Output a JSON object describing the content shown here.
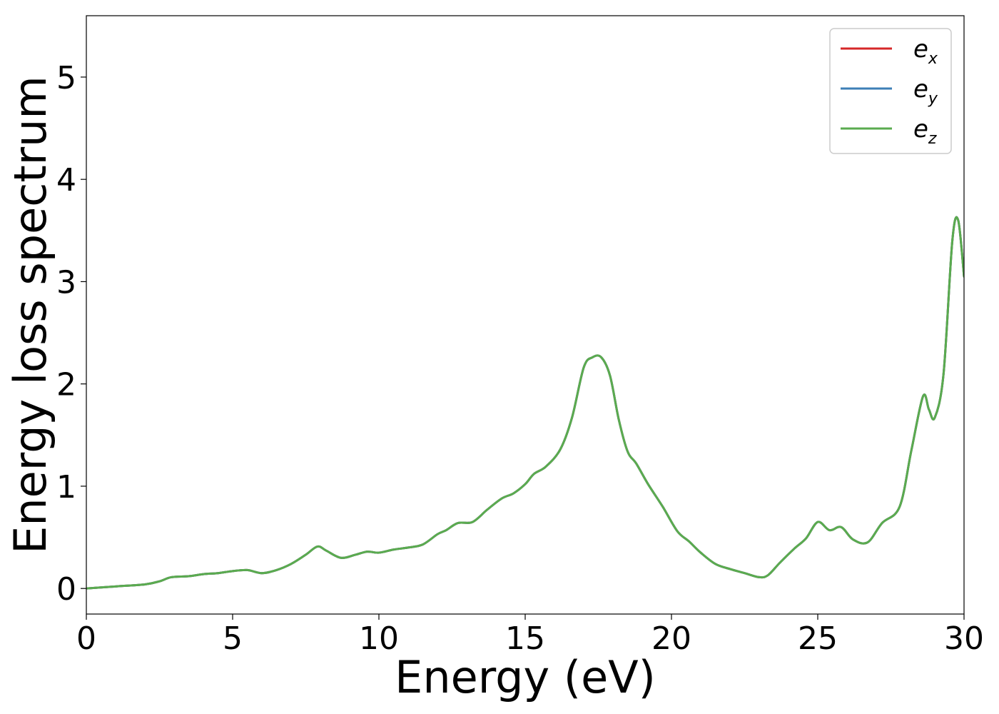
{
  "chart_data": {
    "type": "line",
    "title": "",
    "xlabel": "Energy (eV)",
    "ylabel": "Energy loss spectrum",
    "xlim": [
      0,
      30
    ],
    "ylim": [
      -0.25,
      5.6
    ],
    "xticks": [
      0,
      5,
      10,
      15,
      20,
      25,
      30
    ],
    "yticks": [
      0,
      1,
      2,
      3,
      4,
      5
    ],
    "grid": false,
    "legend_position": "top-right",
    "series": [
      {
        "name": "e",
        "subscript": "x",
        "color": "#d62728",
        "x": [
          0,
          1,
          2,
          2.5,
          2.9,
          3.5,
          4,
          4.5,
          5,
          5.5,
          6,
          6.5,
          7,
          7.5,
          7.9,
          8.2,
          8.7,
          9.2,
          9.6,
          10,
          10.5,
          11,
          11.5,
          12,
          12.3,
          12.7,
          13.2,
          13.7,
          14.2,
          14.6,
          15,
          15.3,
          15.7,
          16.2,
          16.6,
          17,
          17.3,
          17.6,
          17.9,
          18.2,
          18.5,
          18.8,
          19.2,
          19.7,
          20.2,
          20.6,
          21,
          21.5,
          22,
          22.5,
          23,
          23.3,
          23.7,
          24.2,
          24.6,
          25,
          25.4,
          25.8,
          26.2,
          26.7,
          27.2,
          27.8,
          28.2,
          28.6,
          28.8,
          29,
          29.3,
          29.6,
          29.8,
          30
        ],
        "values": [
          0.0,
          0.02,
          0.04,
          0.07,
          0.11,
          0.12,
          0.14,
          0.15,
          0.17,
          0.18,
          0.15,
          0.18,
          0.24,
          0.33,
          0.41,
          0.37,
          0.3,
          0.33,
          0.36,
          0.35,
          0.38,
          0.4,
          0.43,
          0.53,
          0.57,
          0.64,
          0.65,
          0.77,
          0.88,
          0.93,
          1.02,
          1.12,
          1.19,
          1.36,
          1.67,
          2.16,
          2.26,
          2.26,
          2.08,
          1.65,
          1.34,
          1.22,
          1.02,
          0.8,
          0.56,
          0.46,
          0.35,
          0.24,
          0.19,
          0.15,
          0.11,
          0.13,
          0.25,
          0.39,
          0.49,
          0.65,
          0.57,
          0.6,
          0.48,
          0.45,
          0.64,
          0.8,
          1.35,
          1.88,
          1.75,
          1.67,
          2.1,
          3.4,
          3.6,
          3.05
        ]
      },
      {
        "name": "e",
        "subscript": "y",
        "color": "#3d7fb6",
        "x": [
          0,
          1,
          2,
          2.5,
          2.9,
          3.5,
          4,
          4.5,
          5,
          5.5,
          6,
          6.5,
          7,
          7.5,
          7.9,
          8.2,
          8.7,
          9.2,
          9.6,
          10,
          10.5,
          11,
          11.5,
          12,
          12.3,
          12.7,
          13.2,
          13.7,
          14.2,
          14.6,
          15,
          15.3,
          15.7,
          16.2,
          16.6,
          17,
          17.3,
          17.6,
          17.9,
          18.2,
          18.5,
          18.8,
          19.2,
          19.7,
          20.2,
          20.6,
          21,
          21.5,
          22,
          22.5,
          23,
          23.3,
          23.7,
          24.2,
          24.6,
          25,
          25.4,
          25.8,
          26.2,
          26.7,
          27.2,
          27.8,
          28.2,
          28.6,
          28.8,
          29,
          29.3,
          29.6,
          29.8,
          30
        ],
        "values": [
          0.0,
          0.02,
          0.04,
          0.07,
          0.11,
          0.12,
          0.14,
          0.15,
          0.17,
          0.18,
          0.15,
          0.18,
          0.24,
          0.33,
          0.41,
          0.37,
          0.3,
          0.33,
          0.36,
          0.35,
          0.38,
          0.4,
          0.43,
          0.53,
          0.57,
          0.64,
          0.65,
          0.77,
          0.88,
          0.93,
          1.02,
          1.12,
          1.19,
          1.36,
          1.67,
          2.16,
          2.26,
          2.26,
          2.08,
          1.65,
          1.34,
          1.22,
          1.02,
          0.8,
          0.56,
          0.46,
          0.35,
          0.24,
          0.19,
          0.15,
          0.11,
          0.13,
          0.25,
          0.39,
          0.49,
          0.65,
          0.57,
          0.6,
          0.48,
          0.45,
          0.64,
          0.8,
          1.35,
          1.88,
          1.75,
          1.67,
          2.1,
          3.4,
          3.6,
          3.05
        ]
      },
      {
        "name": "e",
        "subscript": "z",
        "color": "#5aab4f",
        "x": [
          0,
          1,
          2,
          2.5,
          2.9,
          3.5,
          4,
          4.5,
          5,
          5.5,
          6,
          6.5,
          7,
          7.5,
          7.9,
          8.2,
          8.7,
          9.2,
          9.6,
          10,
          10.5,
          11,
          11.5,
          12,
          12.3,
          12.7,
          13.2,
          13.7,
          14.2,
          14.6,
          15,
          15.3,
          15.7,
          16.2,
          16.6,
          17,
          17.3,
          17.6,
          17.9,
          18.2,
          18.5,
          18.8,
          19.2,
          19.7,
          20.2,
          20.6,
          21,
          21.5,
          22,
          22.5,
          23,
          23.3,
          23.7,
          24.2,
          24.6,
          25,
          25.4,
          25.8,
          26.2,
          26.7,
          27.2,
          27.8,
          28.2,
          28.6,
          28.8,
          29,
          29.3,
          29.6,
          29.8,
          30
        ],
        "values": [
          0.0,
          0.02,
          0.04,
          0.07,
          0.11,
          0.12,
          0.14,
          0.15,
          0.17,
          0.18,
          0.15,
          0.18,
          0.24,
          0.33,
          0.41,
          0.37,
          0.3,
          0.33,
          0.36,
          0.35,
          0.38,
          0.4,
          0.43,
          0.53,
          0.57,
          0.64,
          0.65,
          0.77,
          0.88,
          0.93,
          1.02,
          1.12,
          1.19,
          1.36,
          1.67,
          2.16,
          2.26,
          2.26,
          2.08,
          1.65,
          1.34,
          1.22,
          1.02,
          0.8,
          0.56,
          0.46,
          0.35,
          0.24,
          0.19,
          0.15,
          0.11,
          0.13,
          0.25,
          0.39,
          0.49,
          0.65,
          0.57,
          0.6,
          0.48,
          0.45,
          0.64,
          0.8,
          1.35,
          1.88,
          1.75,
          1.67,
          2.1,
          3.4,
          3.6,
          3.05
        ]
      }
    ]
  }
}
